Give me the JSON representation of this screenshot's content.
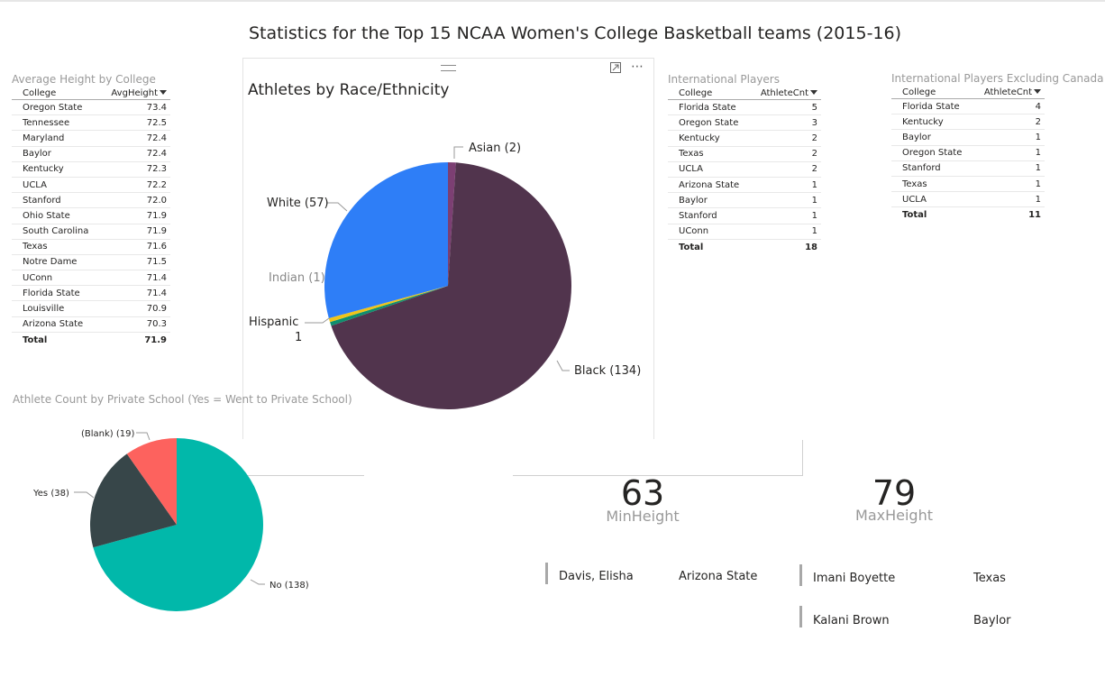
{
  "page_title": "Statistics for the Top 15 NCAA Women's College Basketball teams (2015-16)",
  "avg_height": {
    "title": "Average Height by College",
    "col_college": "College",
    "col_value": "AvgHeight",
    "rows": [
      [
        "Oregon State",
        "73.4"
      ],
      [
        "Tennessee",
        "72.5"
      ],
      [
        "Maryland",
        "72.4"
      ],
      [
        "Baylor",
        "72.4"
      ],
      [
        "Kentucky",
        "72.3"
      ],
      [
        "UCLA",
        "72.2"
      ],
      [
        "Stanford",
        "72.0"
      ],
      [
        "Ohio State",
        "71.9"
      ],
      [
        "South Carolina",
        "71.9"
      ],
      [
        "Texas",
        "71.6"
      ],
      [
        "Notre Dame",
        "71.5"
      ],
      [
        "UConn",
        "71.4"
      ],
      [
        "Florida State",
        "71.4"
      ],
      [
        "Louisville",
        "70.9"
      ],
      [
        "Arizona State",
        "70.3"
      ]
    ],
    "total_label": "Total",
    "total_value": "71.9"
  },
  "intl_players": {
    "title": "International Players",
    "col_college": "College",
    "col_value": "AthleteCnt",
    "rows": [
      [
        "Florida State",
        "5"
      ],
      [
        "Oregon State",
        "3"
      ],
      [
        "Kentucky",
        "2"
      ],
      [
        "Texas",
        "2"
      ],
      [
        "UCLA",
        "2"
      ],
      [
        "Arizona State",
        "1"
      ],
      [
        "Baylor",
        "1"
      ],
      [
        "Stanford",
        "1"
      ],
      [
        "UConn",
        "1"
      ]
    ],
    "total_label": "Total",
    "total_value": "18"
  },
  "intl_excl_canada": {
    "title": "International Players Excluding Canada",
    "col_college": "College",
    "col_value": "AthleteCnt",
    "rows": [
      [
        "Florida State",
        "4"
      ],
      [
        "Kentucky",
        "2"
      ],
      [
        "Baylor",
        "1"
      ],
      [
        "Oregon State",
        "1"
      ],
      [
        "Stanford",
        "1"
      ],
      [
        "Texas",
        "1"
      ],
      [
        "UCLA",
        "1"
      ]
    ],
    "total_label": "Total",
    "total_value": "11"
  },
  "race_card": {
    "title": "Athletes by Race/Ethnicity"
  },
  "private_school": {
    "title": "Athlete Count by Private School (Yes = Went to Private School)"
  },
  "kpi_min": {
    "value": "63",
    "label": "MinHeight"
  },
  "kpi_max": {
    "value": "79",
    "label": "MaxHeight"
  },
  "min_players": [
    {
      "name": "Davis, Elisha",
      "college": "Arizona State"
    }
  ],
  "max_players": [
    {
      "name": "Imani Boyette",
      "college": "Texas"
    },
    {
      "name": "Kalani Brown",
      "college": "Baylor"
    }
  ],
  "chart_data": [
    {
      "type": "pie",
      "title": "Athletes by Race/Ethnicity",
      "slices": [
        {
          "label": "Asian (2)",
          "value": 2,
          "color": "#7c3f73"
        },
        {
          "label": "Black (134)",
          "value": 134,
          "color": "#51344d"
        },
        {
          "label": "Hispanic 1",
          "value": 1,
          "color": "#0f8f6e"
        },
        {
          "label": "Indian (1)",
          "value": 1,
          "color": "#f0c419"
        },
        {
          "label": "White (57)",
          "value": 57,
          "color": "#2e7ef7"
        }
      ]
    },
    {
      "type": "pie",
      "title": "Athlete Count by Private School (Yes = Went to Private School)",
      "slices": [
        {
          "label": "No (138)",
          "value": 138,
          "color": "#01b8aa"
        },
        {
          "label": "Yes (38)",
          "value": 38,
          "color": "#374649"
        },
        {
          "label": "(Blank) (19)",
          "value": 19,
          "color": "#fd625e"
        }
      ]
    }
  ]
}
